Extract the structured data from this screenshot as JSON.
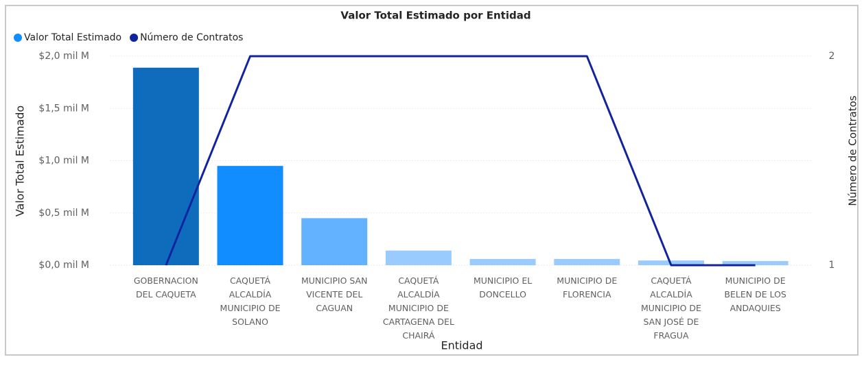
{
  "chart_data": {
    "type": "bar_line",
    "title": "Valor Total Estimado por Entidad",
    "x_label": "Entidad",
    "y_label": "Valor Total Estimado",
    "y2_label": "Número de Contratos",
    "categories": [
      "GOBERNACION DEL CAQUETA",
      "CAQUETÁ ALCALDÍA MUNICIPIO DE SOLANO",
      "MUNICIPIO SAN VICENTE DEL CAGUAN",
      "CAQUETÁ ALCALDÍA MUNICIPIO DE CARTAGENA DEL CHAIRÁ",
      "MUNICIPIO EL DONCELLO",
      "MUNICIPIO DE FLORENCIA",
      "CAQUETÁ ALCALDÍA MUNICIPIO DE SAN JOSÉ DE FRAGUA",
      "MUNICIPIO DE BELEN DE LOS ANDAQUIES"
    ],
    "series": [
      {
        "name": "Valor Total Estimado",
        "color": "#118dff",
        "type": "bar",
        "bar_colors": [
          "#0f6cbd",
          "#118dff",
          "#62b2ff",
          "#99cbff",
          "#99cbff",
          "#99cbff",
          "#99cbff",
          "#99cbff"
        ],
        "values": [
          1.89,
          0.95,
          0.45,
          0.14,
          0.06,
          0.06,
          0.045,
          0.04
        ]
      },
      {
        "name": "Número de Contratos",
        "color": "#12239e",
        "type": "line",
        "axis": "y2",
        "values": [
          1,
          2,
          2,
          2,
          2,
          2,
          1,
          1
        ]
      }
    ],
    "ylim": [
      0,
      2
    ],
    "yticks": [
      {
        "value": 0,
        "label": "$0,0 mil M"
      },
      {
        "value": 0.5,
        "label": "$0,5 mil M"
      },
      {
        "value": 1,
        "label": "$1,0 mil M"
      },
      {
        "value": 1.5,
        "label": "$1,5 mil M"
      },
      {
        "value": 2,
        "label": "$2,0 mil M"
      }
    ],
    "y2lim": [
      1,
      2
    ],
    "y2ticks": [
      1,
      2
    ],
    "grid": true,
    "legend": "top-left"
  }
}
